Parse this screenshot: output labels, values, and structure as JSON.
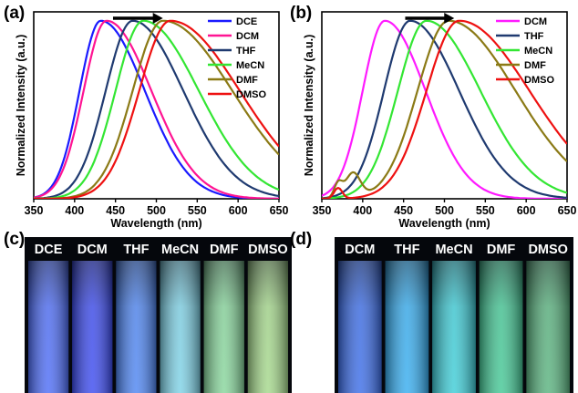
{
  "panel_labels": [
    "(a)",
    "(b)",
    "(c)",
    "(d)"
  ],
  "chart_data": [
    {
      "panel": "(a)",
      "type": "line",
      "xlabel": "Wavelength (nm)",
      "ylabel": "Normalized Intensity (a.u.)",
      "xlim": [
        350,
        650
      ],
      "ylim": [
        0,
        1.05
      ],
      "xticks": [
        350,
        400,
        450,
        500,
        550,
        600,
        650
      ],
      "y_tick_labels": false,
      "grid": false,
      "legend_position": "top-right",
      "annotation": "arrow pointing right (red-shift)",
      "series": [
        {
          "name": "DCE",
          "color": "#1a1aff",
          "peak": 432,
          "width_left": 26,
          "width_right": 54
        },
        {
          "name": "DCM",
          "color": "#ff1493",
          "peak": 439,
          "width_left": 28,
          "width_right": 55
        },
        {
          "name": "THF",
          "color": "#1f3a70",
          "peak": 471,
          "width_left": 33,
          "width_right": 62
        },
        {
          "name": "MeCN",
          "color": "#33e633",
          "peak": 484,
          "width_left": 34,
          "width_right": 68
        },
        {
          "name": "DMF",
          "color": "#8b7a16",
          "peak": 508,
          "width_left": 37,
          "width_right": 85
        },
        {
          "name": "DMSO",
          "color": "#ee1111",
          "peak": 517,
          "width_left": 38,
          "width_right": 85
        }
      ]
    },
    {
      "panel": "(b)",
      "type": "line",
      "xlabel": "Wavelength (nm)",
      "ylabel": "Normalized Intensity (a.u.)",
      "xlim": [
        350,
        650
      ],
      "ylim": [
        0,
        1.05
      ],
      "xticks": [
        350,
        400,
        450,
        500,
        550,
        600,
        650
      ],
      "y_tick_labels": false,
      "grid": false,
      "legend_position": "top-right",
      "annotation": "arrow pointing right (red-shift)",
      "series": [
        {
          "name": "DCM",
          "color": "#ff1aff",
          "peak": 427,
          "width_left": 27,
          "width_right": 50
        },
        {
          "name": "THF",
          "color": "#1f3a70",
          "peak": 458,
          "width_left": 32,
          "width_right": 60
        },
        {
          "name": "MeCN",
          "color": "#33e633",
          "peak": 478,
          "width_left": 35,
          "width_right": 66
        },
        {
          "name": "DMF",
          "color": "#8b7a16",
          "peak": 505,
          "width_left": 38,
          "width_right": 82
        },
        {
          "name": "DMSO",
          "color": "#ee1111",
          "peak": 518,
          "width_left": 40,
          "width_right": 86
        }
      ]
    }
  ],
  "photos": {
    "c": {
      "label": "(c)",
      "vials": [
        {
          "name": "DCE",
          "color": "#4f6ef7"
        },
        {
          "name": "DCM",
          "color": "#3d4cf0"
        },
        {
          "name": "THF",
          "color": "#4f86f2"
        },
        {
          "name": "MeCN",
          "color": "#7fd2e6"
        },
        {
          "name": "DMF",
          "color": "#88d69c"
        },
        {
          "name": "DMSO",
          "color": "#a5d88c"
        }
      ]
    },
    "d": {
      "label": "(d)",
      "vials": [
        {
          "name": "DCM",
          "color": "#3d6ee8"
        },
        {
          "name": "THF",
          "color": "#38aef0"
        },
        {
          "name": "MeCN",
          "color": "#3fcdd7"
        },
        {
          "name": "DMF",
          "color": "#45c896"
        },
        {
          "name": "DMSO",
          "color": "#5ab37f"
        }
      ]
    }
  }
}
